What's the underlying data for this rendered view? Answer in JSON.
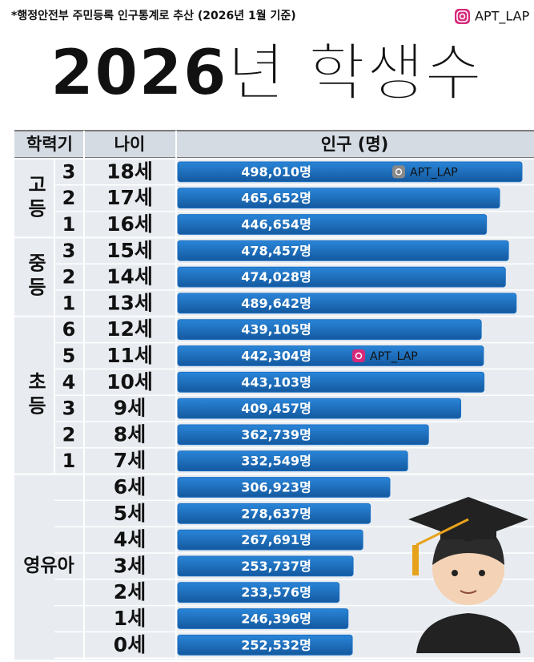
{
  "source": "*행정안전부 주민등록 인구통계로 추산 (2026년 1월 기준)",
  "watermark": "APT_LAP",
  "chart_data": {
    "type": "bar",
    "title": "2026년 학생수",
    "columns": [
      "학력기",
      "나이",
      "인구 (명)"
    ],
    "groups": [
      {
        "name": "고등",
        "grades": [
          "3",
          "2",
          "1"
        ]
      },
      {
        "name": "중등",
        "grades": [
          "3",
          "2",
          "1"
        ]
      },
      {
        "name": "초등",
        "grades": [
          "6",
          "5",
          "4",
          "3",
          "2",
          "1"
        ]
      },
      {
        "name": "영유아",
        "grades": []
      }
    ],
    "group_sizes": [
      3,
      3,
      6,
      7
    ],
    "categories": [
      "18세",
      "17세",
      "16세",
      "15세",
      "14세",
      "13세",
      "12세",
      "11세",
      "10세",
      "9세",
      "8세",
      "7세",
      "6세",
      "5세",
      "4세",
      "3세",
      "2세",
      "1세",
      "0세"
    ],
    "values": [
      498010,
      465652,
      446654,
      478457,
      474028,
      489642,
      439105,
      442304,
      443103,
      409457,
      362739,
      332549,
      306923,
      278637,
      267691,
      253737,
      233576,
      246396,
      252532
    ],
    "value_labels": [
      "498,010명",
      "465,652명",
      "446,654명",
      "478,457명",
      "474,028명",
      "489,642명",
      "439,105명",
      "442,304명",
      "443,103명",
      "409,457명",
      "362,739명",
      "332,549명",
      "306,923명",
      "278,637명",
      "267,691명",
      "253,737명",
      "233,576명",
      "246,396명",
      "252,532명"
    ],
    "color": "#1b6fc2"
  }
}
